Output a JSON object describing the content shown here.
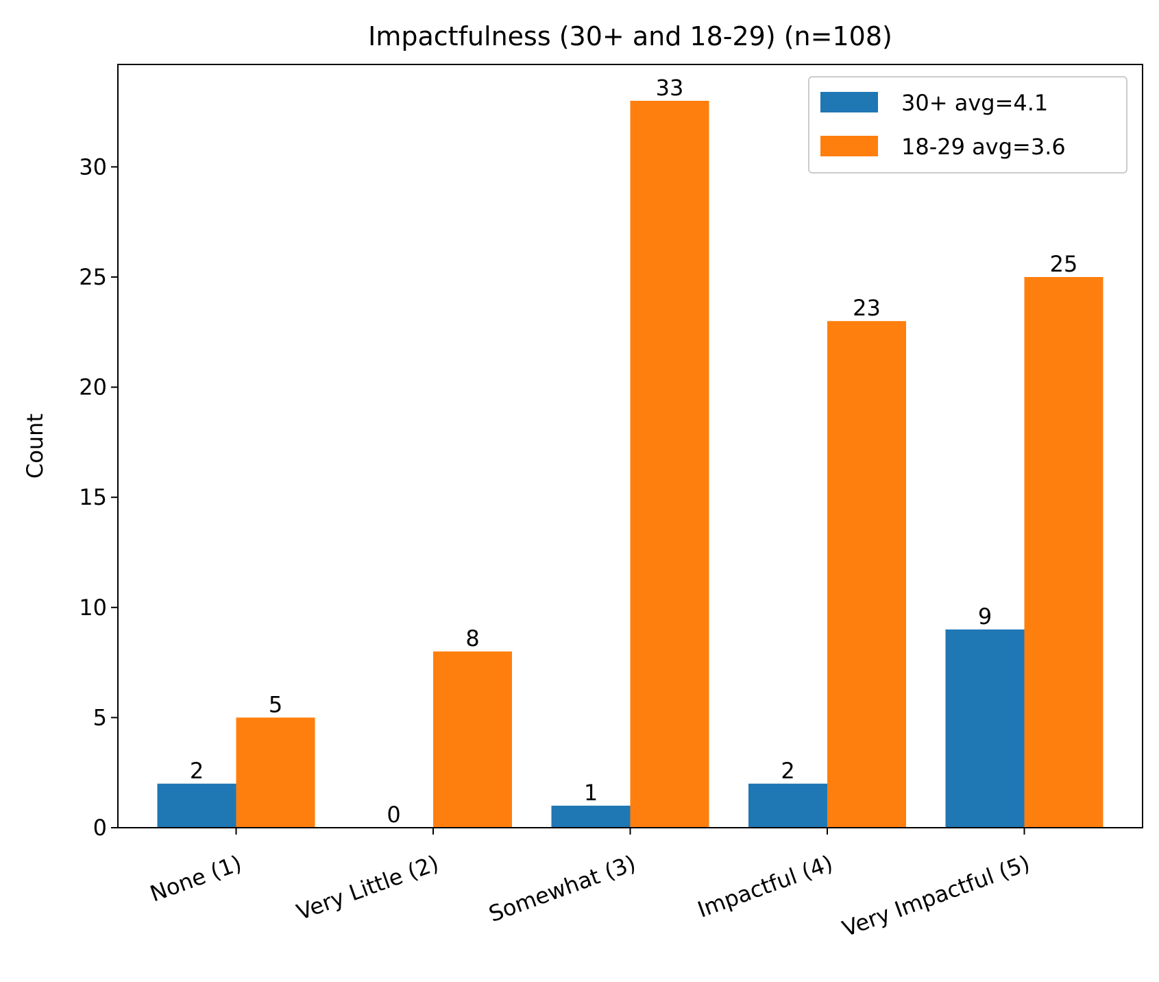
{
  "chart_data": {
    "type": "bar",
    "title": "Impactfulness (30+ and 18-29) (n=108)",
    "xlabel": "",
    "ylabel": "Count",
    "categories": [
      "None (1)",
      "Very Little (2)",
      "Somewhat (3)",
      "Impactful (4)",
      "Very Impactful (5)"
    ],
    "series": [
      {
        "name": "30+ avg=4.1",
        "values": [
          2,
          0,
          1,
          2,
          9
        ],
        "color": "#1f77b4"
      },
      {
        "name": "18-29 avg=3.6",
        "values": [
          5,
          8,
          33,
          23,
          25
        ],
        "color": "#ff7f0e"
      }
    ],
    "ylim": [
      0,
      34.65
    ],
    "yticks": [
      0,
      5,
      10,
      15,
      20,
      25,
      30
    ],
    "grid": false,
    "legend_position": "top-right",
    "data_labels": true
  }
}
